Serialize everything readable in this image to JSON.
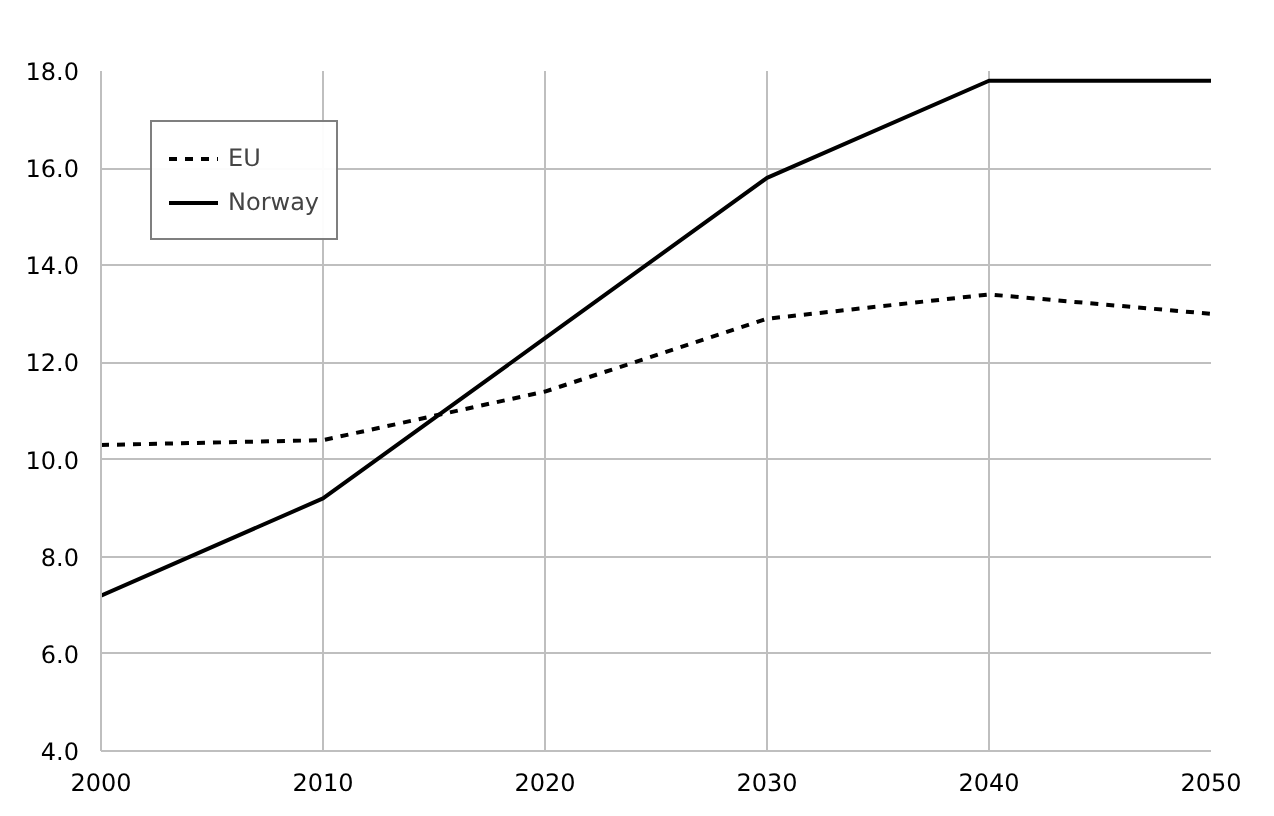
{
  "chart_data": {
    "type": "line",
    "x": [
      2000,
      2010,
      2020,
      2030,
      2040,
      2050
    ],
    "series": [
      {
        "name": "EU",
        "color": "#000000",
        "line_style": "dashed",
        "values": [
          10.3,
          10.4,
          11.4,
          12.9,
          13.4,
          13.0
        ]
      },
      {
        "name": "Norway",
        "color": "#000000",
        "line_style": "solid",
        "values": [
          7.2,
          9.2,
          12.5,
          15.8,
          17.8,
          17.8
        ]
      }
    ],
    "xlim": [
      2000,
      2050
    ],
    "xticks": [
      2000,
      2010,
      2020,
      2030,
      2040,
      2050
    ],
    "ylim": [
      4,
      18
    ],
    "yticks": [
      {
        "value": 4,
        "label": "4.0"
      },
      {
        "value": 6,
        "label": "6.0"
      },
      {
        "value": 8,
        "label": "8.0"
      },
      {
        "value": 10,
        "label": "10.0"
      },
      {
        "value": 12,
        "label": "12.0"
      },
      {
        "value": 14,
        "label": "14.0"
      },
      {
        "value": 16,
        "label": "16.0"
      },
      {
        "value": 18,
        "label": "18.0"
      }
    ],
    "grid": true,
    "legend": "top left",
    "marker": "none"
  }
}
